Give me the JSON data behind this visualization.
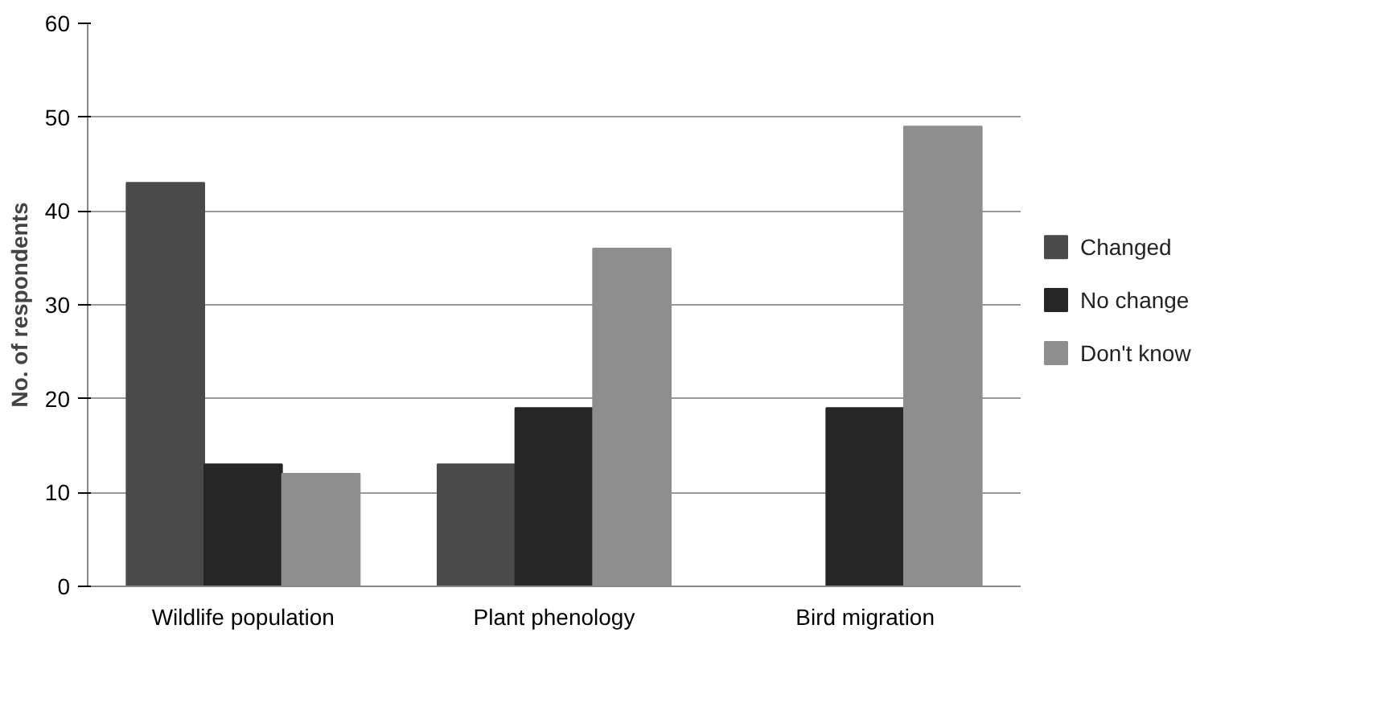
{
  "chart_data": {
    "type": "bar",
    "ylabel": "No. of respondents",
    "categories": [
      "Wildlife population",
      "Plant phenology",
      "Bird migration"
    ],
    "series": [
      {
        "name": "Changed",
        "color": "#4a4a4a",
        "values": [
          43,
          13,
          0
        ]
      },
      {
        "name": "No change",
        "color": "#262626",
        "values": [
          13,
          19,
          19
        ]
      },
      {
        "name": "Don't know",
        "color": "#8e8e8e",
        "values": [
          12,
          36,
          49
        ]
      }
    ],
    "ylim": [
      0,
      60
    ],
    "yticks": [
      0,
      10,
      20,
      30,
      40,
      50,
      60
    ],
    "grid": "y",
    "legend": "right"
  }
}
